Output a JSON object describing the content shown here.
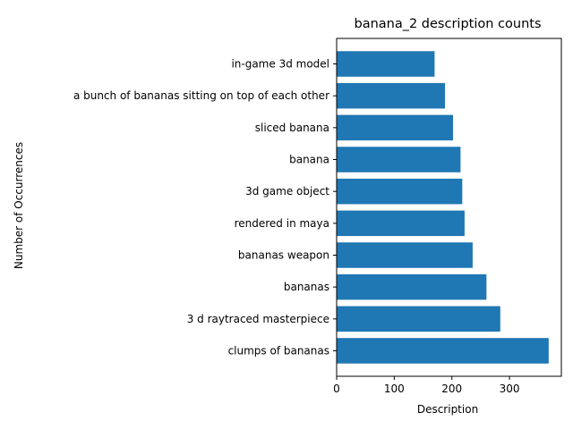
{
  "chart_data": {
    "type": "bar",
    "orientation": "horizontal",
    "title": "banana_2 description counts",
    "xlabel": "Description",
    "ylabel": "Number of Occurrences",
    "categories": [
      "clumps of bananas",
      "3 d raytraced masterpiece",
      "bananas",
      "bananas weapon",
      "rendered in maya",
      "3d game object",
      "banana",
      "sliced banana",
      "a bunch of bananas sitting on top of each other",
      "in-game 3d model"
    ],
    "values": [
      368,
      284,
      260,
      236,
      222,
      218,
      215,
      202,
      188,
      170
    ],
    "xlim": [
      0,
      390
    ],
    "xticks": [
      0,
      100,
      200,
      300
    ],
    "grid": false,
    "legend": "none",
    "bar_color": "#1f77b4"
  }
}
